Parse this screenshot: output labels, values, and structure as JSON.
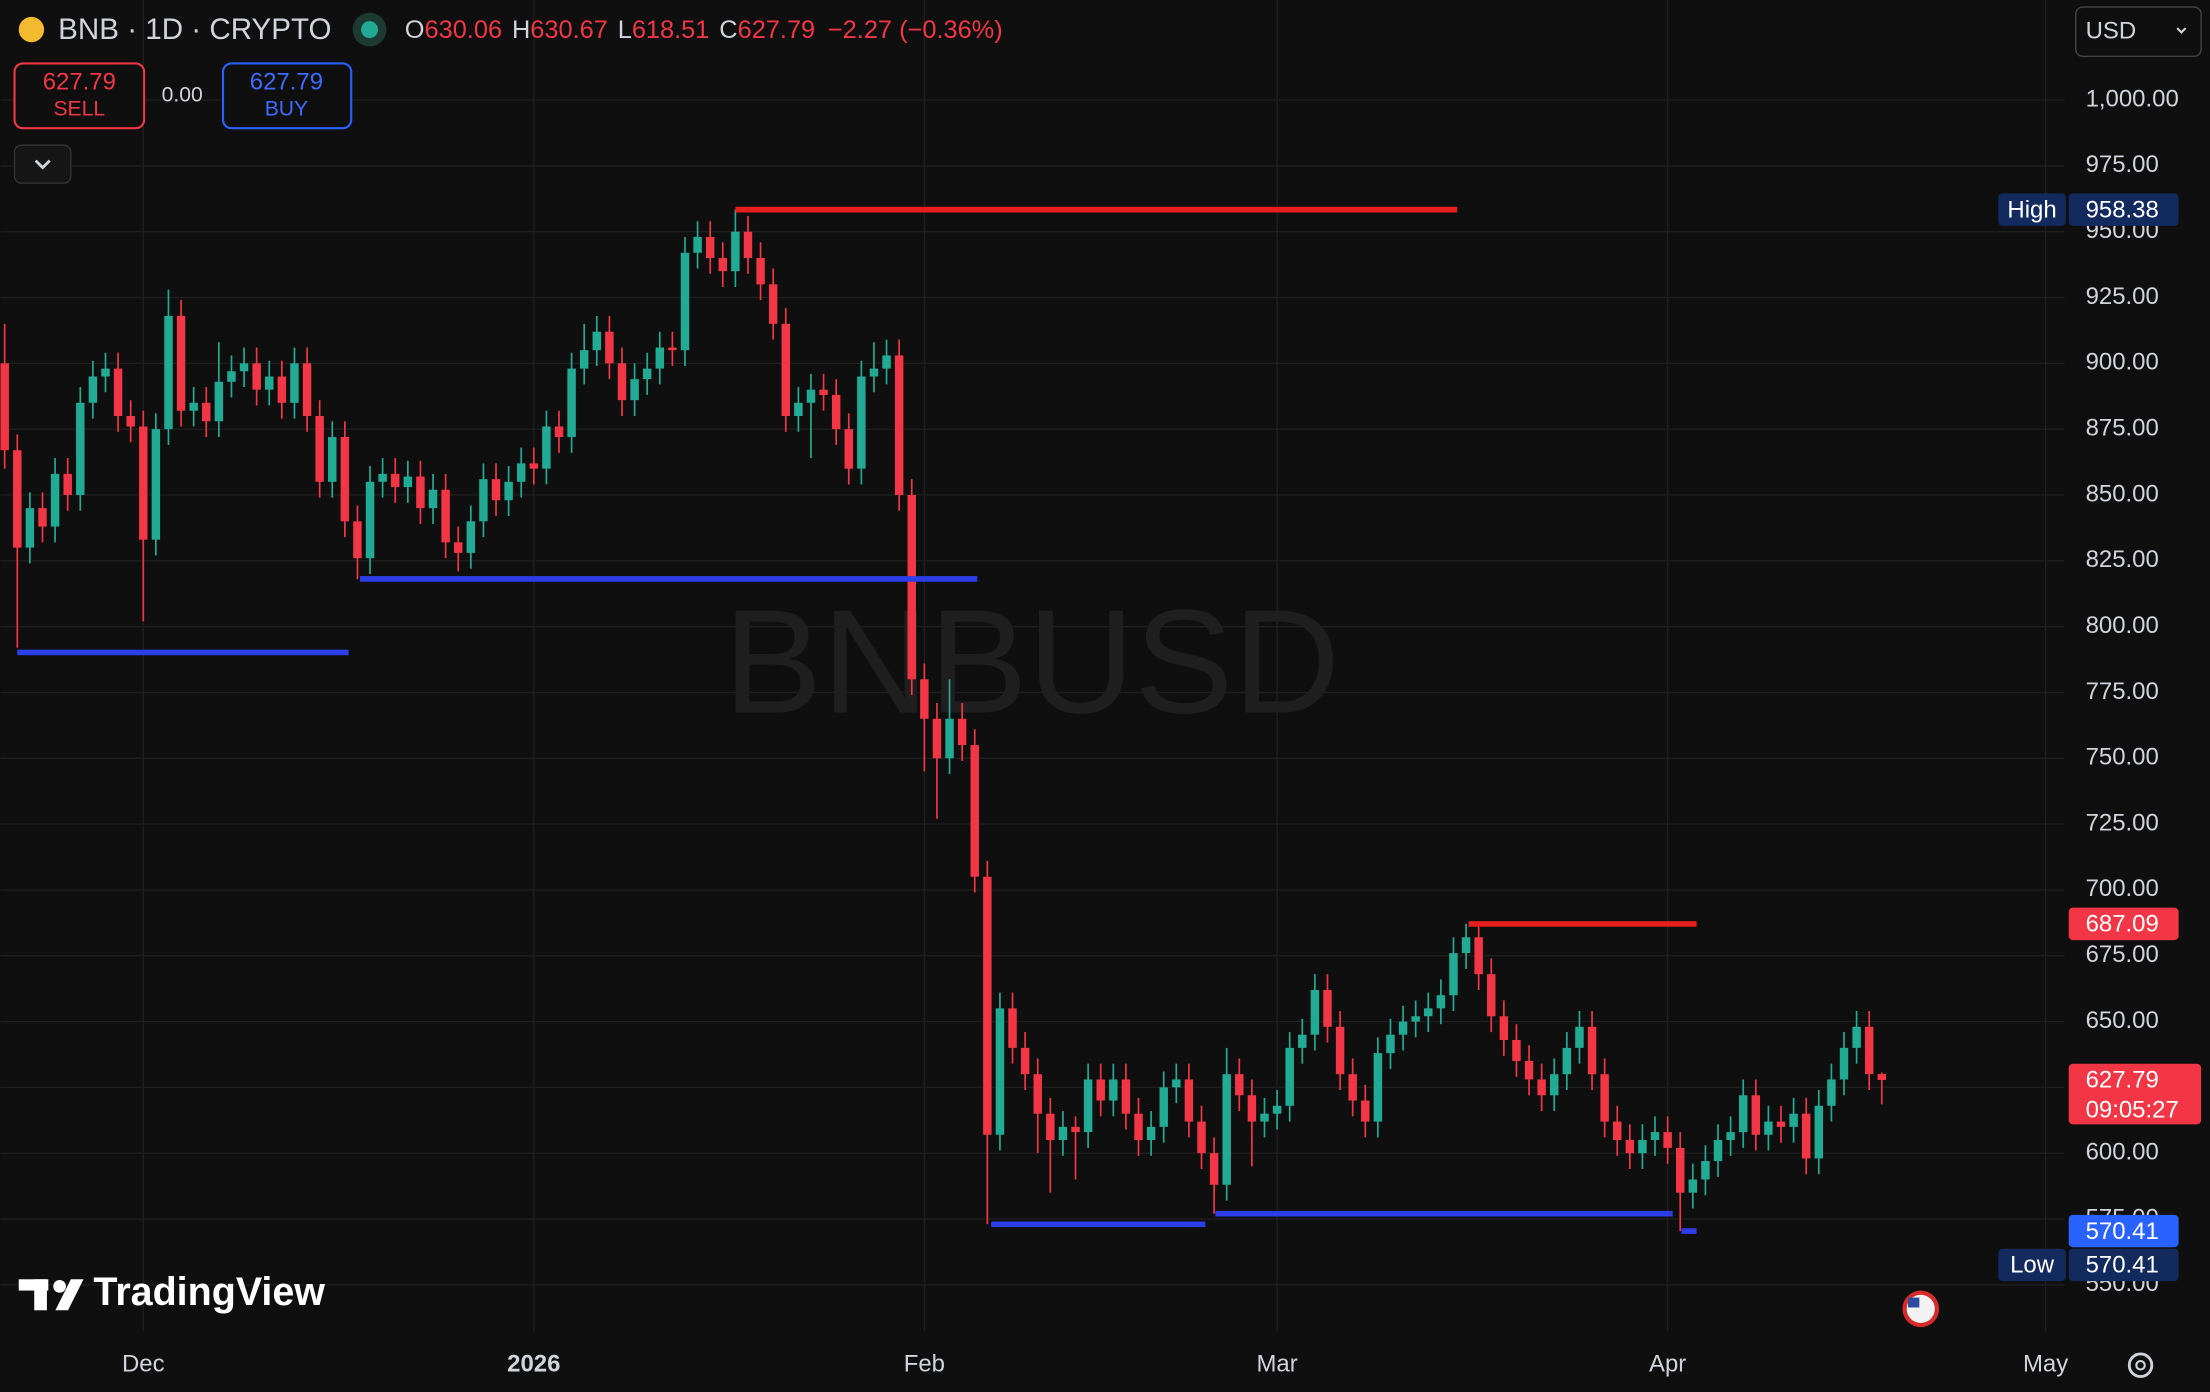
{
  "header": {
    "symbol": "BNB · 1D · CRYPTO",
    "ohlc_labels": [
      "O",
      "H",
      "L",
      "C"
    ],
    "change": "−2.27 (−0.36%)",
    "currency": "USD"
  },
  "trade_panel": {
    "sell_price": "627.79",
    "sell_label": "SELL",
    "spread": "0.00",
    "buy_price": "627.79",
    "buy_label": "BUY"
  },
  "branding": "TradingView",
  "chart_data": {
    "type": "candlestick",
    "watermark": "BNBUSD",
    "up_color": "#22ab94",
    "down_color": "#f23645",
    "grid": true,
    "xlim": [
      -0.34,
      163.5
    ],
    "xticks": [
      {
        "value": 11,
        "label": "Dec"
      },
      {
        "value": 42,
        "label": "2026"
      },
      {
        "value": 73,
        "label": "Feb"
      },
      {
        "value": 101,
        "label": "Mar"
      },
      {
        "value": 132,
        "label": "Apr"
      },
      {
        "value": 162,
        "label": "May"
      }
    ],
    "ylim": [
      532.3,
      1038.0
    ],
    "yticks": [
      {
        "value": 550,
        "label": "550.00"
      },
      {
        "value": 575,
        "label": "575.00"
      },
      {
        "value": 600,
        "label": "600.00"
      },
      {
        "value": 625,
        "label": "625.00"
      },
      {
        "value": 650,
        "label": "650.00"
      },
      {
        "value": 675,
        "label": "675.00"
      },
      {
        "value": 700,
        "label": "700.00"
      },
      {
        "value": 725,
        "label": "725.00"
      },
      {
        "value": 750,
        "label": "750.00"
      },
      {
        "value": 775,
        "label": "775.00"
      },
      {
        "value": 800,
        "label": "800.00"
      },
      {
        "value": 825,
        "label": "825.00"
      },
      {
        "value": 850,
        "label": "850.00"
      },
      {
        "value": 875,
        "label": "875.00"
      },
      {
        "value": 900,
        "label": "900.00"
      },
      {
        "value": 925,
        "label": "925.00"
      },
      {
        "value": 950,
        "label": "950.00"
      },
      {
        "value": 975,
        "label": "975.00"
      },
      {
        "value": 1000,
        "label": "1,000.00"
      }
    ],
    "open": [
      900,
      867,
      830,
      845,
      838,
      858,
      850,
      885,
      895,
      898,
      880,
      876,
      833,
      875,
      918,
      882,
      885,
      878,
      893,
      897,
      900,
      890,
      895,
      885,
      900,
      880,
      855,
      872,
      840,
      826,
      855,
      858,
      853,
      857,
      845,
      852,
      832,
      828,
      840,
      856,
      848,
      855,
      862,
      860,
      876,
      872,
      898,
      905,
      912,
      900,
      886,
      894,
      898,
      906,
      905,
      942,
      948,
      940,
      935,
      950,
      940,
      930,
      915,
      880,
      885,
      890,
      888,
      875,
      860,
      895,
      898,
      903,
      850,
      780,
      765,
      750,
      765,
      755,
      705,
      607,
      655,
      640,
      630,
      615,
      605,
      610,
      608,
      628,
      620,
      628,
      615,
      605,
      610,
      625,
      628,
      612,
      600,
      588,
      630,
      622,
      612,
      615,
      618,
      640,
      645,
      662,
      648,
      630,
      620,
      612,
      638,
      645,
      650,
      652,
      655,
      660,
      676,
      682,
      668,
      652,
      643,
      635,
      628,
      622,
      630,
      640,
      648,
      630,
      612,
      605,
      600,
      605,
      608,
      602,
      585,
      590,
      597,
      605,
      608,
      622,
      607,
      612,
      610,
      615,
      598,
      618,
      628,
      640,
      648,
      630.06
    ],
    "high": [
      915,
      873,
      851,
      851,
      864,
      864,
      891,
      901,
      904,
      904,
      886,
      882,
      881,
      928,
      924,
      891,
      891,
      908,
      903,
      906,
      906,
      901,
      901,
      906,
      906,
      886,
      878,
      878,
      846,
      861,
      864,
      864,
      863,
      863,
      858,
      858,
      838,
      846,
      862,
      862,
      861,
      868,
      868,
      882,
      882,
      904,
      915,
      918,
      918,
      906,
      900,
      904,
      912,
      912,
      948,
      954,
      954,
      946,
      958.38,
      956,
      946,
      936,
      921,
      891,
      896,
      896,
      894,
      881,
      901,
      908,
      909,
      909,
      856,
      786,
      771,
      780,
      771,
      761,
      711,
      661,
      661,
      646,
      636,
      621,
      616,
      614,
      634,
      634,
      634,
      634,
      621,
      616,
      631,
      634,
      634,
      618,
      606,
      640,
      636,
      628,
      621,
      624,
      646,
      651,
      668,
      668,
      654,
      636,
      626,
      644,
      651,
      656,
      658,
      661,
      666,
      682,
      687.09,
      686,
      674,
      658,
      649,
      641,
      634,
      636,
      646,
      654,
      654,
      636,
      618,
      611,
      611,
      614,
      614,
      608,
      596,
      603,
      611,
      614,
      628,
      628,
      618,
      618,
      621,
      621,
      624,
      634,
      646,
      654,
      654,
      630.67
    ],
    "low": [
      860,
      792,
      824,
      832,
      832,
      844,
      844,
      879,
      889,
      874,
      870,
      802,
      827,
      869,
      876,
      876,
      872,
      872,
      887,
      891,
      884,
      884,
      879,
      879,
      874,
      849,
      849,
      834,
      818,
      820,
      849,
      847,
      847,
      839,
      839,
      826,
      821,
      822,
      834,
      842,
      842,
      849,
      854,
      854,
      866,
      866,
      892,
      899,
      894,
      880,
      880,
      888,
      892,
      899,
      899,
      936,
      934,
      929,
      929,
      934,
      924,
      909,
      874,
      874,
      864,
      882,
      869,
      854,
      854,
      889,
      892,
      844,
      774,
      745,
      727,
      744,
      749,
      699,
      573,
      601,
      634,
      624,
      600,
      585,
      599,
      590,
      602,
      614,
      614,
      609,
      599,
      599,
      604,
      619,
      606,
      594,
      577,
      582,
      616,
      595,
      606,
      609,
      612,
      634,
      639,
      642,
      624,
      614,
      606,
      606,
      632,
      639,
      644,
      646,
      649,
      654,
      670,
      662,
      646,
      637,
      629,
      622,
      616,
      616,
      624,
      634,
      624,
      606,
      599,
      594,
      594,
      599,
      596,
      570.41,
      579,
      584,
      591,
      599,
      602,
      601,
      601,
      604,
      604,
      592,
      592,
      612,
      622,
      634,
      624,
      618.51
    ],
    "close": [
      867,
      830,
      845,
      838,
      858,
      850,
      885,
      895,
      898,
      880,
      876,
      833,
      875,
      918,
      882,
      885,
      878,
      893,
      897,
      900,
      890,
      895,
      885,
      900,
      880,
      855,
      872,
      840,
      826,
      855,
      858,
      853,
      857,
      845,
      852,
      832,
      828,
      840,
      856,
      848,
      855,
      862,
      860,
      876,
      872,
      898,
      905,
      912,
      900,
      886,
      894,
      898,
      906,
      905,
      942,
      948,
      940,
      935,
      950,
      940,
      930,
      915,
      880,
      885,
      890,
      888,
      875,
      860,
      895,
      898,
      903,
      850,
      780,
      765,
      750,
      765,
      755,
      705,
      607,
      655,
      640,
      630,
      615,
      605,
      610,
      608,
      628,
      620,
      628,
      615,
      605,
      610,
      625,
      628,
      612,
      600,
      588,
      630,
      622,
      612,
      615,
      618,
      640,
      645,
      662,
      648,
      630,
      620,
      612,
      638,
      645,
      650,
      652,
      655,
      660,
      676,
      682,
      668,
      652,
      643,
      635,
      628,
      622,
      630,
      640,
      648,
      630,
      612,
      605,
      600,
      605,
      608,
      602,
      585,
      590,
      597,
      605,
      608,
      622,
      607,
      612,
      610,
      615,
      598,
      618,
      628,
      640,
      648,
      630.06,
      627.79
    ],
    "levels": [
      {
        "value": 958.38,
        "x": [
          58,
          115.3
        ],
        "color": "#e61e1e"
      },
      {
        "value": 790.2,
        "x": [
          1.0,
          27.3
        ],
        "color": "#2b3ee8"
      },
      {
        "value": 818.1,
        "x": [
          28.2,
          77.2
        ],
        "color": "#2b3ee8"
      },
      {
        "value": 573,
        "x": [
          78.3,
          95.3
        ],
        "color": "#2b3ee8"
      },
      {
        "value": 577,
        "x": [
          96.1,
          132.4
        ],
        "color": "#2b3ee8"
      },
      {
        "value": 570.41,
        "x": [
          133.1,
          134.3
        ],
        "color": "#2b3ee8"
      },
      {
        "value": 687.09,
        "x": [
          116.2,
          134.3
        ],
        "color": "#e61e1e"
      }
    ],
    "high_label": "High",
    "low_label": "Low",
    "countdown": "09:05:27"
  }
}
